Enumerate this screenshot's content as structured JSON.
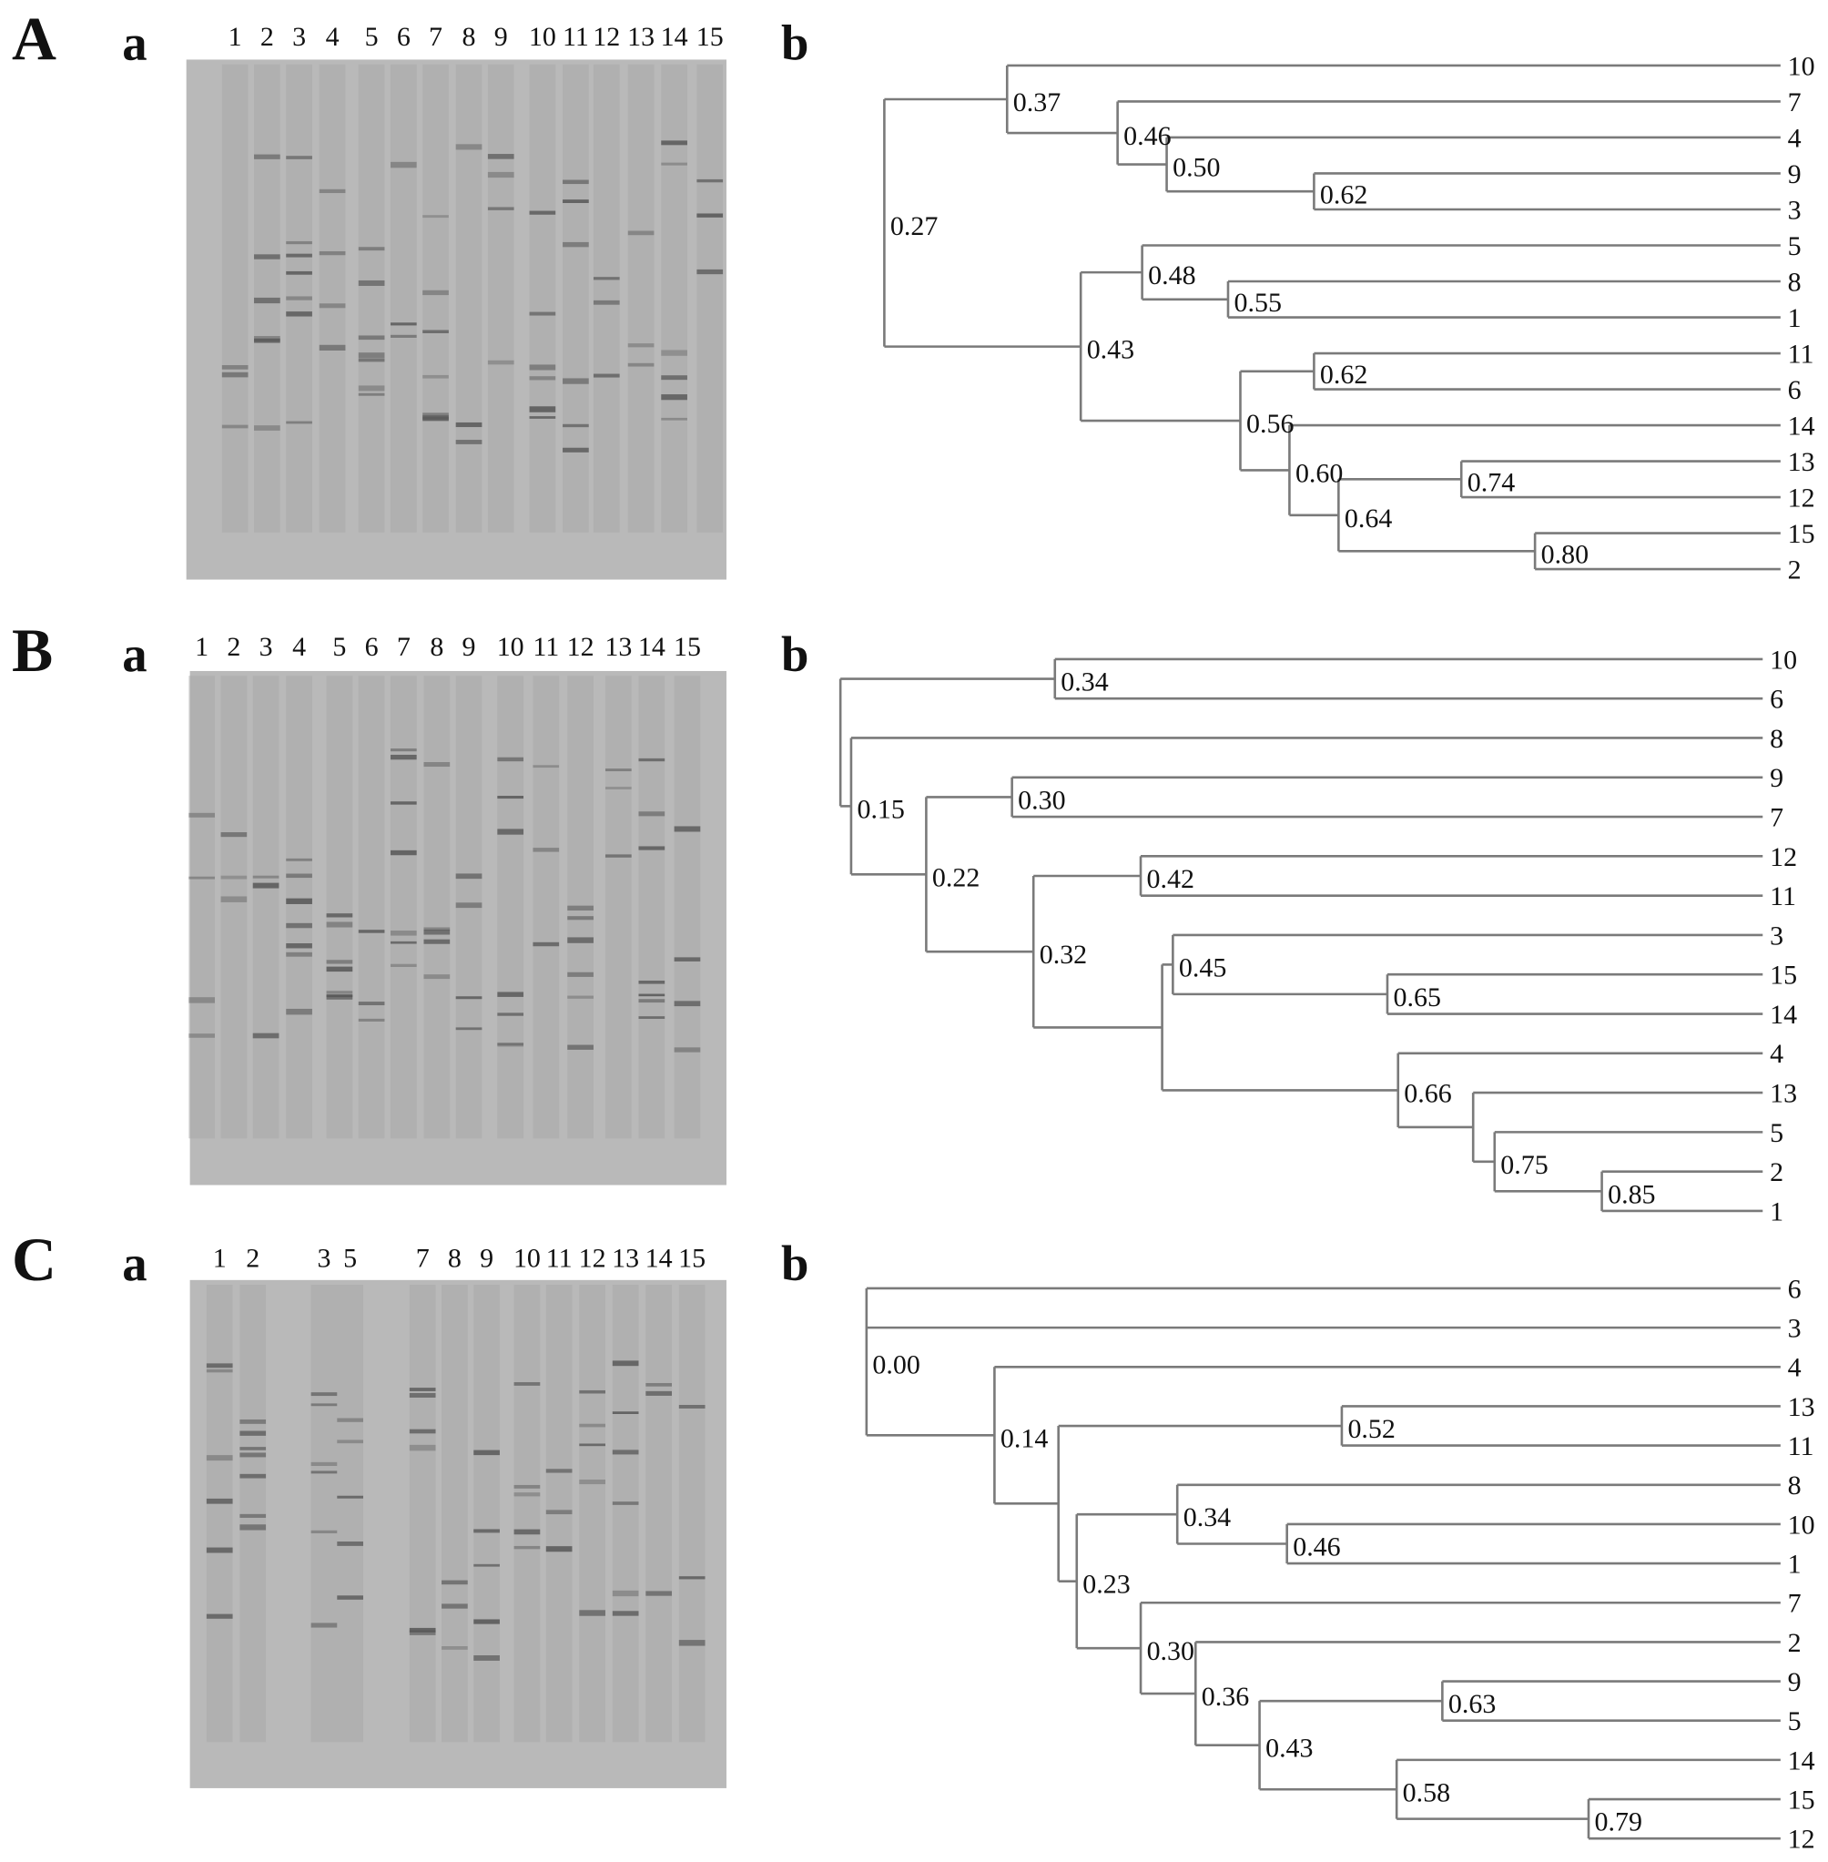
{
  "colors": {
    "gel_background": "#b9b9b9",
    "band": "#555555",
    "branch": "#7a7a7a"
  },
  "panels": [
    {
      "letter": "A",
      "gel_label": "a",
      "tree_label": "b",
      "lanes": [
        "1",
        "2",
        "3",
        "4",
        "5",
        "6",
        "7",
        "8",
        "9",
        "10",
        "11",
        "12",
        "13",
        "14",
        "15"
      ],
      "tree": {
        "s": 0.27,
        "label": "0.27",
        "children": [
          {
            "s": 0.37,
            "label": "0.37",
            "children": [
              "10",
              {
                "s": 0.46,
                "label": "0.46",
                "children": [
                  "7",
                  {
                    "s": 0.5,
                    "label": "0.50",
                    "children": [
                      "4",
                      {
                        "s": 0.62,
                        "label": "0.62",
                        "children": [
                          "9",
                          "3"
                        ]
                      }
                    ]
                  }
                ]
              }
            ]
          },
          {
            "s": 0.43,
            "label": "0.43",
            "children": [
              {
                "s": 0.48,
                "label": "0.48",
                "children": [
                  "5",
                  {
                    "s": 0.55,
                    "label": "0.55",
                    "children": [
                      "8",
                      "1"
                    ]
                  }
                ]
              },
              {
                "s": 0.56,
                "label": "0.56",
                "children": [
                  {
                    "s": 0.62,
                    "label": "0.62",
                    "children": [
                      "11",
                      "6"
                    ]
                  },
                  {
                    "s": 0.6,
                    "label": "0.60",
                    "children": [
                      "14",
                      {
                        "s": 0.64,
                        "label": "0.64",
                        "children": [
                          {
                            "s": 0.74,
                            "label": "0.74",
                            "children": [
                              "13",
                              "12"
                            ]
                          },
                          {
                            "s": 0.8,
                            "label": "0.80",
                            "children": [
                              "15",
                              "2"
                            ]
                          }
                        ]
                      }
                    ]
                  }
                ]
              }
            ]
          }
        ]
      }
    },
    {
      "letter": "B",
      "gel_label": "a",
      "tree_label": "b",
      "lanes": [
        "1",
        "2",
        "3",
        "4",
        "5",
        "6",
        "7",
        "8",
        "9",
        "10",
        "11",
        "12",
        "13",
        "14",
        "15"
      ],
      "tree": {
        "s": 0.14,
        "label": null,
        "children": [
          {
            "s": 0.34,
            "label": "0.34",
            "children": [
              "10",
              "6"
            ]
          },
          {
            "s": 0.15,
            "label": "0.15",
            "children": [
              "8",
              {
                "s": 0.22,
                "label": "0.22",
                "children": [
                  {
                    "s": 0.3,
                    "label": "0.30",
                    "children": [
                      "9",
                      "7"
                    ]
                  },
                  {
                    "s": 0.32,
                    "label": "0.32",
                    "children": [
                      {
                        "s": 0.42,
                        "label": "0.42",
                        "children": [
                          "12",
                          "11"
                        ]
                      },
                      {
                        "s": 0.44,
                        "label": null,
                        "children": [
                          {
                            "s": 0.45,
                            "label": "0.45",
                            "children": [
                              "3",
                              {
                                "s": 0.65,
                                "label": "0.65",
                                "children": [
                                  "15",
                                  "14"
                                ]
                              }
                            ]
                          },
                          {
                            "s": 0.66,
                            "label": "0.66",
                            "children": [
                              "4",
                              {
                                "s": 0.73,
                                "label": null,
                                "children": [
                                  "13",
                                  {
                                    "s": 0.75,
                                    "label": "0.75",
                                    "children": [
                                      "5",
                                      {
                                        "s": 0.85,
                                        "label": "0.85",
                                        "children": [
                                          "2",
                                          "1"
                                        ]
                                      }
                                    ]
                                  }
                                ]
                              }
                            ]
                          }
                        ]
                      }
                    ]
                  }
                ]
              }
            ]
          }
        ]
      }
    },
    {
      "letter": "C",
      "gel_label": "a",
      "tree_label": "b",
      "lanes": [
        "1",
        "2",
        "3",
        "5",
        "7",
        "8",
        "9",
        "10",
        "11",
        "12",
        "13",
        "14",
        "15"
      ],
      "tree": {
        "s": 0.0,
        "label": "0.00",
        "children": [
          "6",
          "3",
          {
            "s": 0.14,
            "label": "0.14",
            "children": [
              "4",
              {
                "s": 0.21,
                "label": null,
                "children": [
                  {
                    "s": 0.52,
                    "label": "0.52",
                    "children": [
                      "13",
                      "11"
                    ]
                  },
                  {
                    "s": 0.23,
                    "label": "0.23",
                    "children": [
                      {
                        "s": 0.34,
                        "label": "0.34",
                        "children": [
                          "8",
                          {
                            "s": 0.46,
                            "label": "0.46",
                            "children": [
                              "10",
                              "1"
                            ]
                          }
                        ]
                      },
                      {
                        "s": 0.3,
                        "label": "0.30",
                        "children": [
                          "7",
                          {
                            "s": 0.36,
                            "label": "0.36",
                            "children": [
                              "2",
                              {
                                "s": 0.43,
                                "label": "0.43",
                                "children": [
                                  {
                                    "s": 0.63,
                                    "label": "0.63",
                                    "children": [
                                      "9",
                                      "5"
                                    ]
                                  },
                                  {
                                    "s": 0.58,
                                    "label": "0.58",
                                    "children": [
                                      "14",
                                      {
                                        "s": 0.79,
                                        "label": "0.79",
                                        "children": [
                                          "15",
                                          "12"
                                        ]
                                      }
                                    ]
                                  }
                                ]
                              }
                            ]
                          }
                        ]
                      }
                    ]
                  }
                ]
              }
            ]
          }
        ]
      }
    }
  ]
}
